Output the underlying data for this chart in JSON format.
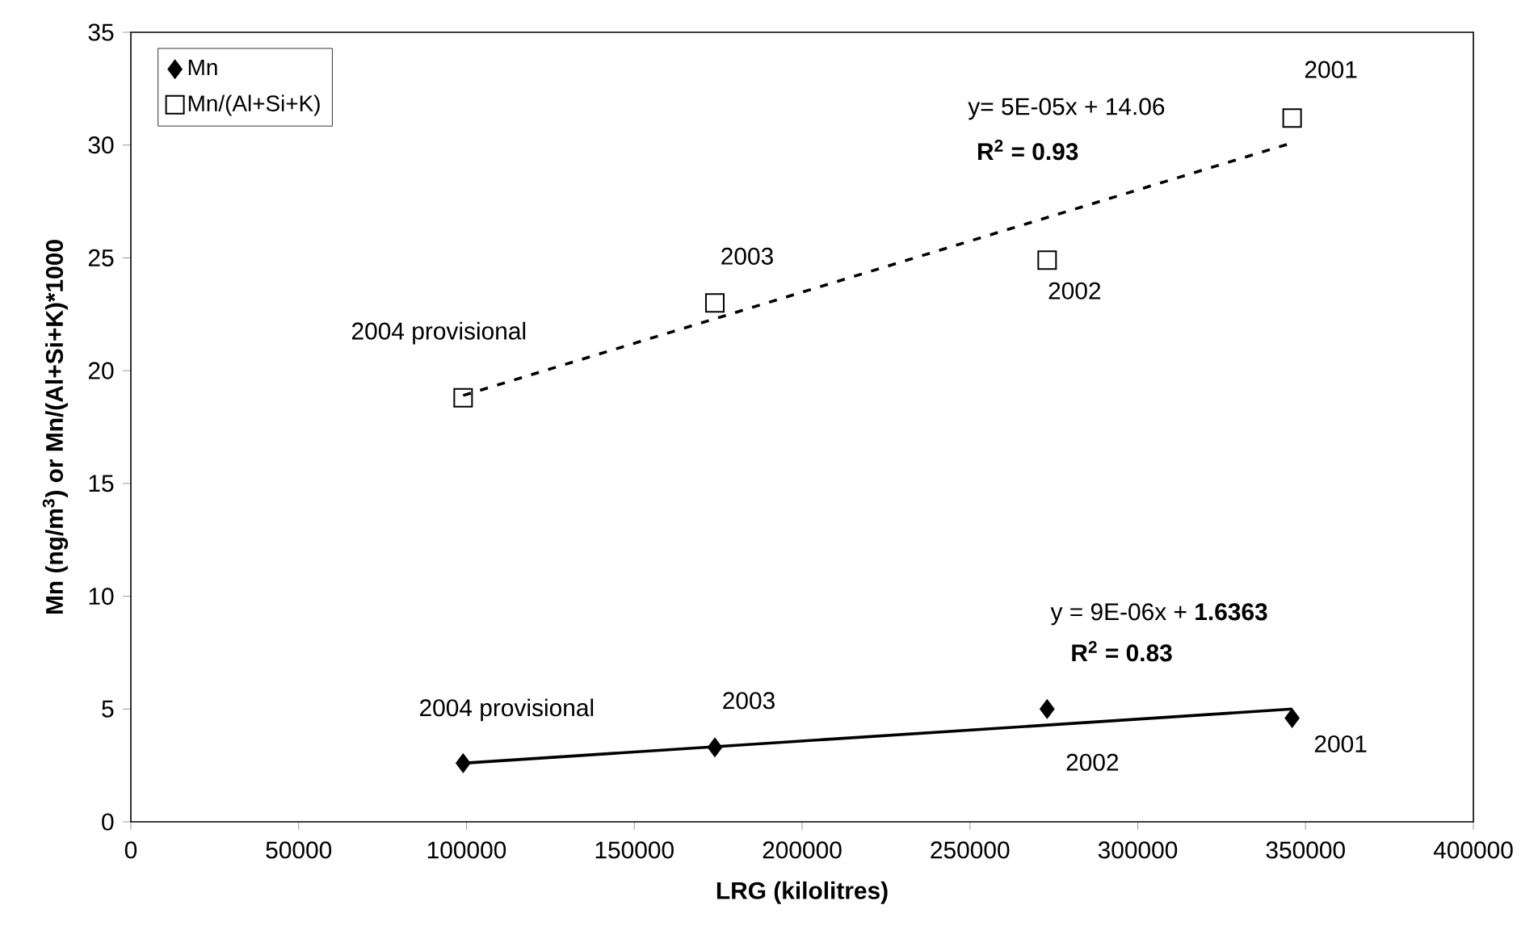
{
  "chart_data": {
    "type": "scatter",
    "xlabel": "LRG (kilolitres)",
    "ylabel": "Mn (ng/m$^{3}$) or Mn/(Al+Si+K)*1000",
    "xlim": [
      0,
      400000
    ],
    "ylim": [
      0,
      35
    ],
    "xticks": [
      0,
      50000,
      100000,
      150000,
      200000,
      250000,
      300000,
      350000,
      400000
    ],
    "yticks": [
      0,
      5,
      10,
      15,
      20,
      25,
      30,
      35
    ],
    "legend": "top left",
    "grid": false,
    "series": [
      {
        "name": "Mn",
        "marker": "diamond",
        "color": "#000000",
        "x": [
          99000,
          174000,
          273000,
          346000
        ],
        "values": [
          2.6,
          3.3,
          5.0,
          4.6
        ]
      },
      {
        "name": "Mn/(Al+Si+K)",
        "marker": "square",
        "color": "#000000",
        "x": [
          99000,
          174000,
          273000,
          346000
        ],
        "values": [
          18.8,
          23.0,
          24.9,
          31.2
        ]
      },
      {
        "type": "line",
        "line_style": "solid",
        "marker": "none",
        "color": "#000000",
        "x": [
          99000,
          346000
        ],
        "values": [
          2.6,
          5.0
        ]
      },
      {
        "type": "line",
        "line_style": "dashed",
        "marker": "none",
        "color": "#000000",
        "x": [
          99000,
          346000
        ],
        "values": [
          18.9,
          30.1
        ]
      }
    ],
    "annotations": [
      {
        "text": "2001",
        "x": 346000,
        "y": 31.2
      },
      {
        "text": "2003",
        "x": 174000,
        "y": 23.0
      },
      {
        "text": "2002",
        "x": 273000,
        "y": 24.9
      },
      {
        "text": "2004 provisional",
        "x": 99000,
        "y": 18.8
      },
      "y= 5E-05x + 14.06",
      "R$^{2}$ = 0.93",
      {
        "text": "2001",
        "x": 346000,
        "y": 4.6
      },
      {
        "text": "2002",
        "x": 273000,
        "y": 5.0
      },
      {
        "text": "2003",
        "x": 174000,
        "y": 3.3
      },
      {
        "text": "2004 provisional",
        "x": 99000,
        "y": 2.6
      },
      "y = 9E-06x + **1.6363**",
      "R$^{2}$ = 0.83"
    ]
  }
}
